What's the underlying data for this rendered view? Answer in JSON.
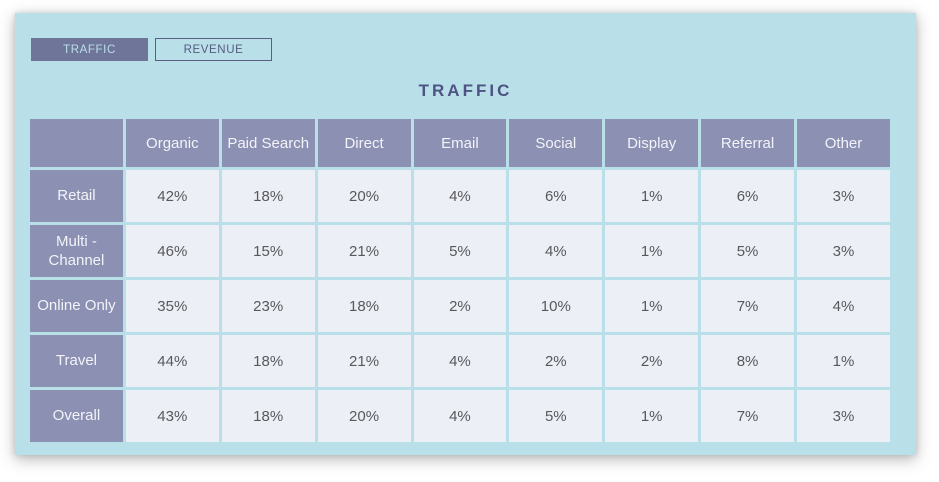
{
  "tabs": [
    {
      "label": "TRAFFIC",
      "active": true
    },
    {
      "label": "REVENUE",
      "active": false
    }
  ],
  "title": "TRAFFIC",
  "chart_data": {
    "type": "table",
    "title": "TRAFFIC",
    "columns": [
      "",
      "Organic",
      "Paid Search",
      "Direct",
      "Email",
      "Social",
      "Display",
      "Referral",
      "Other"
    ],
    "rows": [
      {
        "label": "Retail",
        "values": [
          "42%",
          "18%",
          "20%",
          "4%",
          "6%",
          "1%",
          "6%",
          "3%"
        ]
      },
      {
        "label": "Multi - Channel",
        "values": [
          "46%",
          "15%",
          "21%",
          "5%",
          "4%",
          "1%",
          "5%",
          "3%"
        ]
      },
      {
        "label": "Online Only",
        "values": [
          "35%",
          "23%",
          "18%",
          "2%",
          "10%",
          "1%",
          "7%",
          "4%"
        ]
      },
      {
        "label": "Travel",
        "values": [
          "44%",
          "18%",
          "21%",
          "4%",
          "2%",
          "2%",
          "8%",
          "1%"
        ]
      },
      {
        "label": "Overall",
        "values": [
          "43%",
          "18%",
          "20%",
          "4%",
          "5%",
          "1%",
          "7%",
          "3%"
        ]
      }
    ]
  },
  "colors": {
    "card_background": "#b9dfe9",
    "header_cell": "#8c90b2",
    "active_tab": "#6f7598",
    "inactive_tab_border": "#5a5f82",
    "data_cell": "#edeff7",
    "title_text": "#4d5382",
    "header_text": "#f2f4fa",
    "data_text": "#58595b"
  }
}
